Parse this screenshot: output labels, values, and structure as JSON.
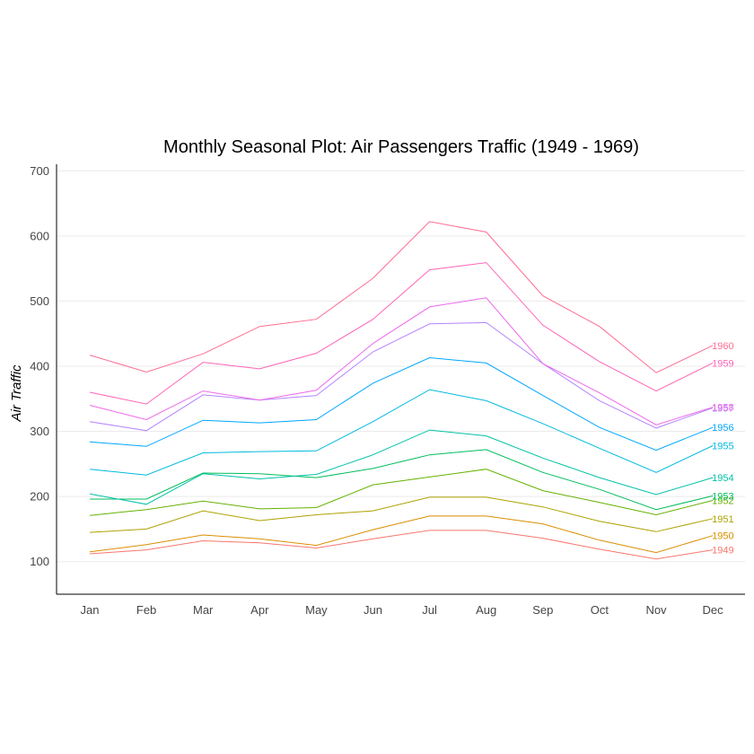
{
  "chart_data": {
    "type": "line",
    "title": "Monthly Seasonal Plot: Air Passengers Traffic (1949 - 1969)",
    "xlabel": "",
    "ylabel": "Air Traffic",
    "categories": [
      "Jan",
      "Feb",
      "Mar",
      "Apr",
      "May",
      "Jun",
      "Jul",
      "Aug",
      "Sep",
      "Oct",
      "Nov",
      "Dec"
    ],
    "ylim": [
      50,
      710
    ],
    "yticks": [
      100,
      200,
      300,
      400,
      500,
      600,
      700
    ],
    "grid": "horizontal",
    "legend": "none",
    "series": [
      {
        "name": "1949",
        "color": "#F8766D",
        "values": [
          112,
          118,
          132,
          129,
          121,
          135,
          148,
          148,
          136,
          119,
          104,
          118
        ]
      },
      {
        "name": "1950",
        "color": "#DB8E00",
        "values": [
          115,
          126,
          141,
          135,
          125,
          149,
          170,
          170,
          158,
          133,
          114,
          140
        ]
      },
      {
        "name": "1951",
        "color": "#AEA200",
        "values": [
          145,
          150,
          178,
          163,
          172,
          178,
          199,
          199,
          184,
          162,
          146,
          166
        ]
      },
      {
        "name": "1952",
        "color": "#64B200",
        "values": [
          171,
          180,
          193,
          181,
          183,
          218,
          230,
          242,
          209,
          191,
          172,
          194
        ]
      },
      {
        "name": "1953",
        "color": "#00BD5C",
        "values": [
          196,
          196,
          236,
          235,
          229,
          243,
          264,
          272,
          237,
          211,
          180,
          201
        ]
      },
      {
        "name": "1954",
        "color": "#00C1A7",
        "values": [
          204,
          188,
          235,
          227,
          234,
          264,
          302,
          293,
          259,
          229,
          203,
          229
        ]
      },
      {
        "name": "1955",
        "color": "#00BADE",
        "values": [
          242,
          233,
          267,
          269,
          270,
          315,
          364,
          347,
          312,
          274,
          237,
          278
        ]
      },
      {
        "name": "1956",
        "color": "#00A6FF",
        "values": [
          284,
          277,
          317,
          313,
          318,
          374,
          413,
          405,
          355,
          306,
          271,
          306
        ]
      },
      {
        "name": "1957",
        "color": "#B385FF",
        "values": [
          315,
          301,
          356,
          348,
          355,
          422,
          465,
          467,
          404,
          347,
          305,
          336
        ]
      },
      {
        "name": "1958",
        "color": "#EF67EB",
        "values": [
          340,
          318,
          362,
          348,
          363,
          435,
          491,
          505,
          404,
          359,
          310,
          337
        ]
      },
      {
        "name": "1959",
        "color": "#FF63B6",
        "values": [
          360,
          342,
          406,
          396,
          420,
          472,
          548,
          559,
          463,
          407,
          362,
          405
        ]
      },
      {
        "name": "1960",
        "color": "#FF6C91",
        "values": [
          417,
          391,
          419,
          461,
          472,
          535,
          622,
          606,
          508,
          461,
          390,
          432
        ]
      }
    ]
  }
}
